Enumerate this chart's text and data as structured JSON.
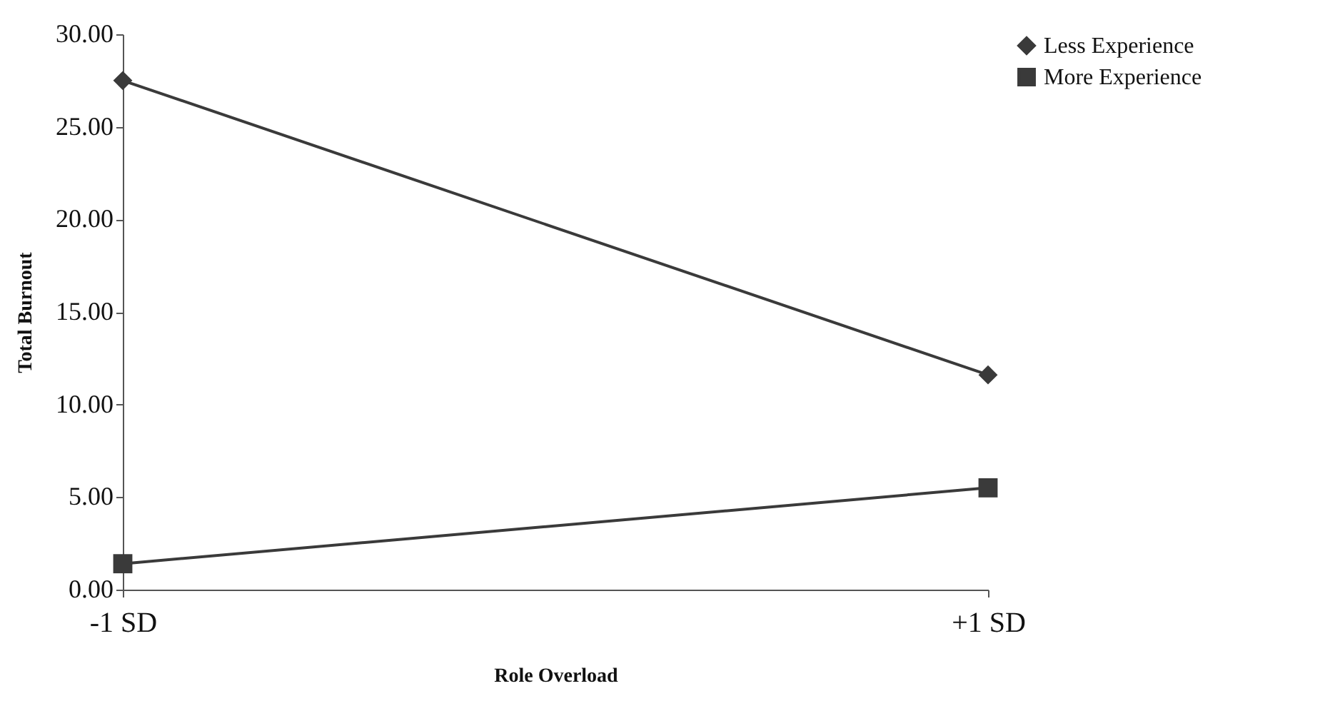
{
  "chart_data": {
    "type": "line",
    "xlabel": "Role Overload",
    "ylabel": "Total Burnout",
    "categories": [
      "-1 SD",
      "+1 SD"
    ],
    "series": [
      {
        "name": "Less Experience",
        "color": "#3a3a3a",
        "marker": "diamond",
        "values": [
          27.5,
          11.6
        ]
      },
      {
        "name": "More Experience",
        "color": "#3a3a3a",
        "marker": "square",
        "values": [
          1.4,
          5.5
        ]
      }
    ],
    "ylim": [
      0,
      30
    ],
    "yticks": [
      {
        "value": 0,
        "label": "0.00"
      },
      {
        "value": 5,
        "label": "5.00"
      },
      {
        "value": 10,
        "label": "10.00"
      },
      {
        "value": 15,
        "label": "15.00"
      },
      {
        "value": 20,
        "label": "20.00"
      },
      {
        "value": 25,
        "label": "25.00"
      },
      {
        "value": 30,
        "label": "30.00"
      }
    ],
    "grid": false,
    "legend": "right",
    "line_style": "solid"
  }
}
